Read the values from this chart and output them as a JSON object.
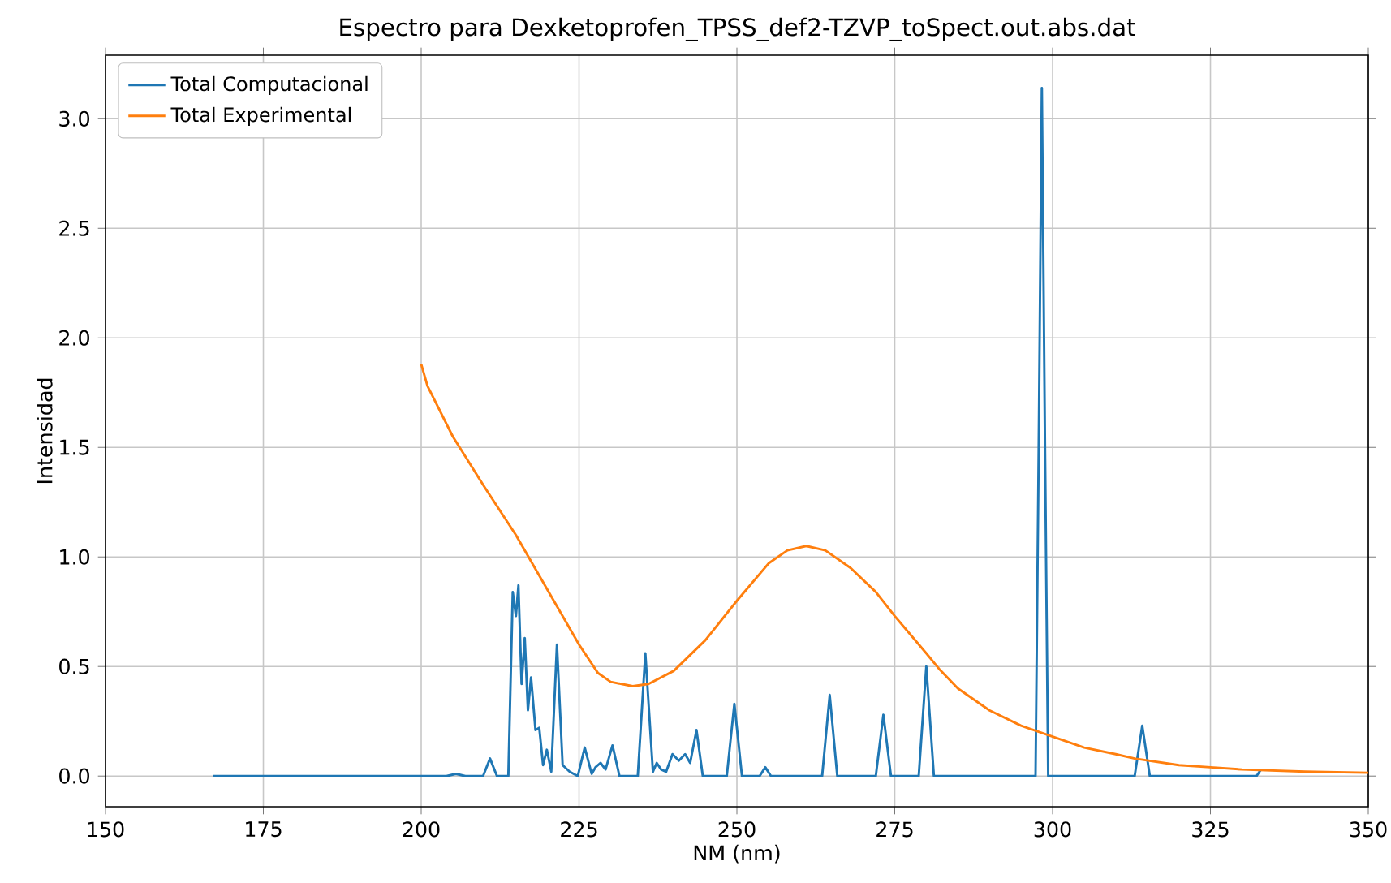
{
  "chart_data": {
    "type": "line",
    "title": "Espectro para Dexketoprofen_TPSS_def2-TZVP_toSpect.out.abs.dat",
    "xlabel": "NM (nm)",
    "ylabel": "Intensidad",
    "xlim": [
      150,
      350
    ],
    "ylim": [
      -0.14,
      3.29
    ],
    "xticks": [
      150,
      175,
      200,
      225,
      250,
      275,
      300,
      325,
      350
    ],
    "yticks": [
      {
        "value": 0,
        "label": "0.0"
      },
      {
        "value": 0.5,
        "label": "0.5"
      },
      {
        "value": 1,
        "label": "1.0"
      },
      {
        "value": 1.5,
        "label": "1.5"
      },
      {
        "value": 2,
        "label": "2.0"
      },
      {
        "value": 2.5,
        "label": "2.5"
      },
      {
        "value": 3,
        "label": "3.0"
      }
    ],
    "grid": true,
    "legend": "top left",
    "series": [
      {
        "name": "Total Computacional",
        "color": "#1f77b4",
        "x": [
          167,
          204,
          205.5,
          207,
          209.8,
          210.9,
          212,
          213.8,
          214.5,
          215.0,
          215.4,
          215.9,
          216.4,
          216.9,
          217.4,
          218.1,
          218.7,
          219.3,
          219.9,
          220.6,
          221.5,
          222.4,
          223.5,
          224.8,
          225.9,
          227.0,
          227.6,
          228.4,
          229.2,
          230.3,
          231.4,
          234.3,
          235.5,
          236.7,
          237.3,
          238.0,
          238.8,
          239.8,
          240.8,
          241.8,
          242.6,
          243.6,
          244.6,
          248.4,
          249.6,
          250.8,
          253.6,
          254.5,
          255.4,
          263.5,
          264.7,
          265.9,
          272.0,
          273.2,
          274.4,
          278.8,
          280.0,
          281.2,
          297.3,
          297.8,
          298.3,
          298.8,
          299.3,
          313.0,
          314.2,
          315.4,
          332.3,
          333
        ],
        "values": [
          0,
          0,
          0.01,
          0,
          0,
          0.08,
          0,
          0,
          0.84,
          0.73,
          0.87,
          0.42,
          0.63,
          0.3,
          0.45,
          0.21,
          0.22,
          0.05,
          0.12,
          0.02,
          0.6,
          0.05,
          0.02,
          0,
          0.13,
          0.01,
          0.04,
          0.06,
          0.03,
          0.14,
          0,
          0,
          0.56,
          0.02,
          0.06,
          0.03,
          0.02,
          0.1,
          0.07,
          0.1,
          0.06,
          0.21,
          0,
          0,
          0.33,
          0,
          0,
          0.04,
          0,
          0,
          0.37,
          0,
          0,
          0.28,
          0,
          0,
          0.5,
          0,
          0,
          1.5,
          3.14,
          1.5,
          0,
          0,
          0.23,
          0,
          0,
          0.03
        ]
      },
      {
        "name": "Total Experimental",
        "color": "#ff7f0e",
        "x": [
          200,
          201,
          205,
          210,
          215,
          220,
          225,
          228,
          230,
          233.5,
          236,
          240,
          245,
          250,
          255,
          258,
          261,
          264,
          268,
          272,
          275,
          280,
          282,
          285,
          290,
          295,
          300,
          305,
          310,
          313,
          320,
          325,
          330,
          340,
          350
        ],
        "values": [
          1.88,
          1.78,
          1.55,
          1.32,
          1.1,
          0.85,
          0.6,
          0.47,
          0.43,
          0.41,
          0.42,
          0.48,
          0.62,
          0.8,
          0.97,
          1.03,
          1.05,
          1.03,
          0.95,
          0.84,
          0.73,
          0.56,
          0.49,
          0.4,
          0.3,
          0.23,
          0.18,
          0.13,
          0.1,
          0.08,
          0.05,
          0.04,
          0.03,
          0.02,
          0.015
        ]
      }
    ]
  }
}
